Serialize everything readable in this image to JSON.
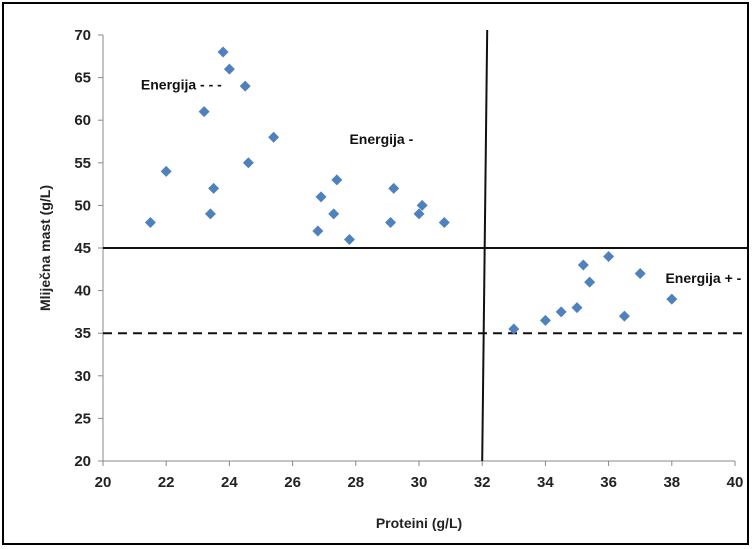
{
  "chart_data": {
    "type": "scatter",
    "xlabel": "Proteini (g/L)",
    "ylabel": "Mliječna mast (g/L)",
    "xlim": [
      20,
      40
    ],
    "ylim": [
      20,
      70
    ],
    "x_ticks": [
      20,
      22,
      24,
      26,
      28,
      30,
      32,
      34,
      36,
      38,
      40
    ],
    "y_ticks": [
      20,
      25,
      30,
      35,
      40,
      45,
      50,
      55,
      60,
      65,
      70
    ],
    "marker_color": "#4f81bd",
    "grid": false,
    "series": [
      {
        "points": [
          {
            "x": 21.5,
            "y": 48
          },
          {
            "x": 22.0,
            "y": 54
          },
          {
            "x": 23.2,
            "y": 61
          },
          {
            "x": 23.4,
            "y": 49
          },
          {
            "x": 23.5,
            "y": 52
          },
          {
            "x": 23.8,
            "y": 68
          },
          {
            "x": 24.0,
            "y": 66
          },
          {
            "x": 24.5,
            "y": 64
          },
          {
            "x": 24.6,
            "y": 55
          },
          {
            "x": 25.4,
            "y": 58
          },
          {
            "x": 26.8,
            "y": 47
          },
          {
            "x": 26.9,
            "y": 51
          },
          {
            "x": 27.3,
            "y": 49
          },
          {
            "x": 27.4,
            "y": 53
          },
          {
            "x": 27.8,
            "y": 46
          },
          {
            "x": 29.1,
            "y": 48
          },
          {
            "x": 29.2,
            "y": 52
          },
          {
            "x": 30.0,
            "y": 49
          },
          {
            "x": 30.1,
            "y": 50
          },
          {
            "x": 30.8,
            "y": 48
          },
          {
            "x": 33.0,
            "y": 35.5
          },
          {
            "x": 34.0,
            "y": 36.5
          },
          {
            "x": 34.5,
            "y": 37.5
          },
          {
            "x": 35.0,
            "y": 38
          },
          {
            "x": 35.2,
            "y": 43
          },
          {
            "x": 35.4,
            "y": 41
          },
          {
            "x": 36.0,
            "y": 44
          },
          {
            "x": 36.5,
            "y": 37
          },
          {
            "x": 37.0,
            "y": 42
          },
          {
            "x": 38.0,
            "y": 39
          }
        ]
      }
    ],
    "reference_lines": [
      {
        "orientation": "horizontal",
        "value": 45,
        "style": "solid"
      },
      {
        "orientation": "horizontal",
        "value": 35,
        "style": "dashed"
      },
      {
        "orientation": "vertical",
        "value": 32,
        "style": "solid"
      }
    ],
    "annotations": [
      {
        "text": "Energija - - -",
        "x": 21.2,
        "y": 63.6
      },
      {
        "text": "Energija -",
        "x": 27.8,
        "y": 57.2
      },
      {
        "text": "Energija + -",
        "x": 37.8,
        "y": 40.9
      }
    ]
  }
}
